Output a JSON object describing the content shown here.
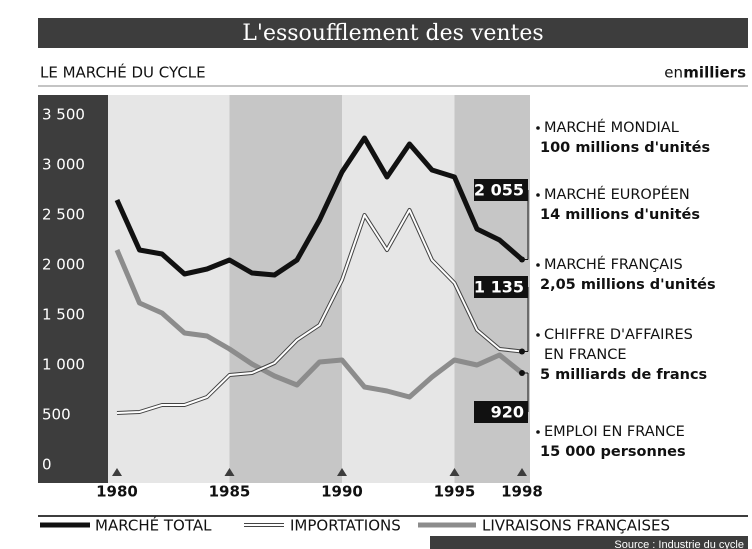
{
  "chart_data": {
    "type": "line",
    "title": "L'essoufflement des ventes",
    "subtitle": "LE MARCHÉ DU CYCLE",
    "unit_prefix": "en",
    "unit": "milliers",
    "x": [
      1980,
      1981,
      1982,
      1983,
      1984,
      1985,
      1986,
      1987,
      1988,
      1989,
      1990,
      1991,
      1992,
      1993,
      1994,
      1995,
      1996,
      1997,
      1998
    ],
    "xlim": [
      1980,
      1998
    ],
    "xticks": [
      1980,
      1985,
      1990,
      1995,
      1998
    ],
    "ylim": [
      0,
      3500
    ],
    "yticks": [
      0,
      500,
      {
        "value": 1000,
        "label": "1 000"
      },
      {
        "value": 1500,
        "label": "1 500"
      },
      {
        "value": 2000,
        "label": "2 000"
      },
      {
        "value": 2500,
        "label": "2 500"
      },
      {
        "value": 3000,
        "label": "3 000"
      },
      {
        "value": 3500,
        "label": "3 500"
      }
    ],
    "shaded_periods": [
      [
        1985,
        1990
      ],
      [
        1995,
        1998
      ]
    ],
    "series": [
      {
        "name": "MARCHÉ TOTAL",
        "color": "#111111",
        "style": "solid",
        "values": [
          2650,
          2150,
          2110,
          1910,
          1960,
          2050,
          1920,
          1900,
          2050,
          2450,
          2930,
          3270,
          2880,
          3210,
          2950,
          2880,
          2360,
          2250,
          2055
        ],
        "value_labels": [
          null,
          null,
          null,
          null,
          null,
          null,
          null,
          null,
          null,
          null,
          null,
          null,
          null,
          null,
          null,
          null,
          null,
          null,
          "2 055"
        ]
      },
      {
        "name": "IMPORTATIONS",
        "color": "#ffffff",
        "style": "double",
        "values": [
          520,
          530,
          600,
          600,
          680,
          900,
          920,
          1020,
          1250,
          1400,
          1850,
          2500,
          2150,
          2550,
          2050,
          1820,
          1350,
          1160,
          1135
        ],
        "value_labels": [
          null,
          null,
          null,
          null,
          null,
          null,
          null,
          null,
          null,
          null,
          null,
          null,
          null,
          null,
          null,
          null,
          null,
          null,
          "1 135"
        ]
      },
      {
        "name": "LIVRAISONS FRANÇAISES",
        "color": "#8c8c8c",
        "style": "solid",
        "values": [
          2150,
          1620,
          1520,
          1320,
          1290,
          1160,
          1010,
          890,
          800,
          1030,
          1050,
          780,
          740,
          680,
          880,
          1050,
          1000,
          1100,
          920
        ],
        "value_labels": [
          null,
          null,
          null,
          null,
          null,
          null,
          null,
          null,
          null,
          null,
          null,
          null,
          null,
          null,
          null,
          null,
          null,
          null,
          "920"
        ]
      }
    ],
    "annotations": [
      {
        "lines": [
          "MARCHÉ MONDIAL"
        ],
        "detail": "100 millions d'unités"
      },
      {
        "lines": [
          "MARCHÉ EUROPÉEN"
        ],
        "detail": "14 millions d'unités"
      },
      {
        "lines": [
          "MARCHÉ FRANÇAIS"
        ],
        "detail": "2,05 millions d'unités"
      },
      {
        "lines": [
          "CHIFFRE D'AFFAIRES",
          "EN FRANCE"
        ],
        "detail": "5 milliards de francs"
      },
      {
        "lines": [
          "EMPLOI EN FRANCE"
        ],
        "detail": "15 000 personnes"
      }
    ],
    "source": "Source : Industrie du cycle"
  }
}
